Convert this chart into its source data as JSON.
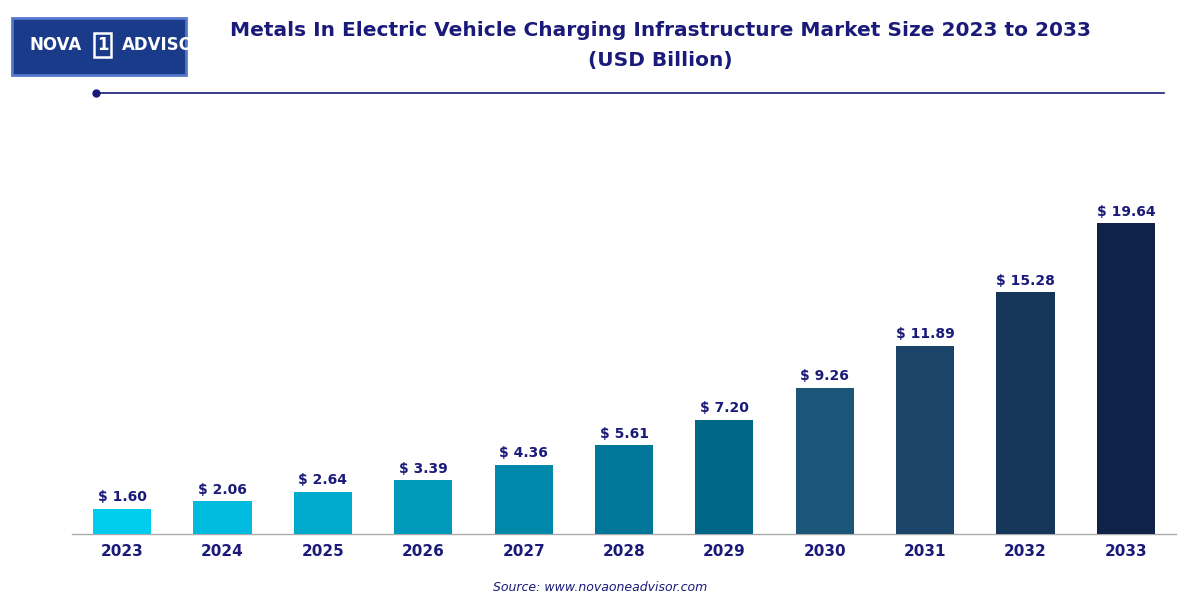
{
  "years": [
    "2023",
    "2024",
    "2025",
    "2026",
    "2027",
    "2028",
    "2029",
    "2030",
    "2031",
    "2032",
    "2033"
  ],
  "values": [
    1.6,
    2.06,
    2.64,
    3.39,
    4.36,
    5.61,
    7.2,
    9.26,
    11.89,
    15.28,
    19.64
  ],
  "bar_colors": [
    "#00CCEE",
    "#00BBDD",
    "#00AACC",
    "#0099BB",
    "#0088AA",
    "#007799",
    "#006688",
    "#1B5578",
    "#1B4468",
    "#153658",
    "#0F2248"
  ],
  "title_line1": "Metals In Electric Vehicle Charging Infrastructure Market Size 2023 to 2033",
  "title_line2": "(USD Billion)",
  "title_color": "#1a1a7a",
  "source_text": "Source: www.novaoneadvisor.com",
  "source_color": "#1a1a7a",
  "label_color": "#1a1a7a",
  "bg_color": "#ffffff",
  "plot_bg_color": "#ffffff",
  "grid_color": "#ccccdd",
  "ylim": [
    0,
    22
  ],
  "title_fontsize": 14.5,
  "label_fontsize": 10,
  "tick_fontsize": 11,
  "bar_width": 0.58,
  "separator_line_color": "#1a1a7a",
  "logo_bg_color": "#1a3a8a",
  "logo_border_color": "#5577cc"
}
